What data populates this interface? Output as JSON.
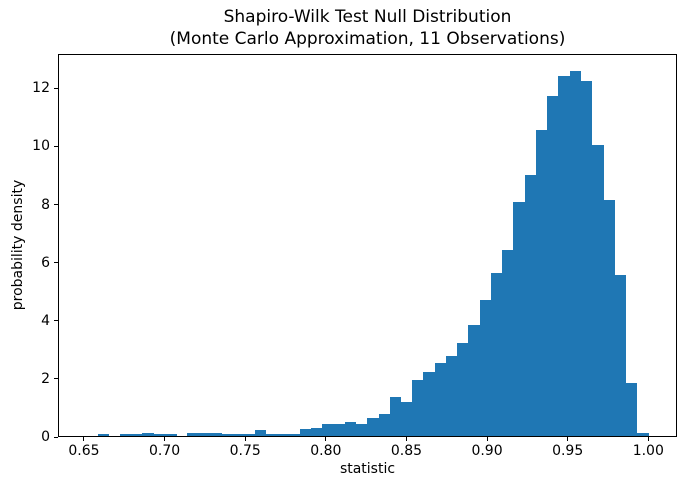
{
  "title": {
    "line1": "Shapiro-Wilk Test Null Distribution",
    "line2": "(Monte Carlo Approximation, 11 Observations)"
  },
  "chart_data": {
    "type": "bar",
    "subtype": "histogram",
    "title": "Shapiro-Wilk Test Null Distribution\n(Monte Carlo Approximation, 11 Observations)",
    "xlabel": "statistic",
    "ylabel": "probability density",
    "x_ticks": [
      0.65,
      0.7,
      0.75,
      0.8,
      0.85,
      0.9,
      0.95,
      1.0
    ],
    "x_tick_labels": [
      "0.65",
      "0.70",
      "0.75",
      "0.80",
      "0.85",
      "0.90",
      "0.95",
      "1.00"
    ],
    "y_ticks": [
      0,
      2,
      4,
      6,
      8,
      10,
      12
    ],
    "y_tick_labels": [
      "0",
      "2",
      "4",
      "6",
      "8",
      "10",
      "12"
    ],
    "xlim": [
      0.6339,
      1.0178
    ],
    "ylim": [
      0,
      13.18
    ],
    "grid": false,
    "legend": "none",
    "bar_color": "#1f77b4",
    "histogram": {
      "bin_start": 0.6584,
      "bin_width": 0.006971,
      "bin_count": 49,
      "heights": [
        0.09,
        0,
        0.1,
        0.1,
        0.14,
        0.1,
        0.1,
        0,
        0.13,
        0.13,
        0.13,
        0.1,
        0.1,
        0.11,
        0.23,
        0.12,
        0.12,
        0.12,
        0.28,
        0.3,
        0.44,
        0.44,
        0.52,
        0.44,
        0.66,
        0.78,
        1.38,
        1.19,
        1.95,
        2.25,
        2.55,
        2.8,
        3.22,
        3.87,
        4.71,
        5.65,
        6.45,
        8.1,
        9.02,
        10.58,
        11.74,
        12.41,
        12.61,
        12.26,
        10.06,
        8.15,
        5.57,
        1.85,
        0.15
      ]
    }
  }
}
